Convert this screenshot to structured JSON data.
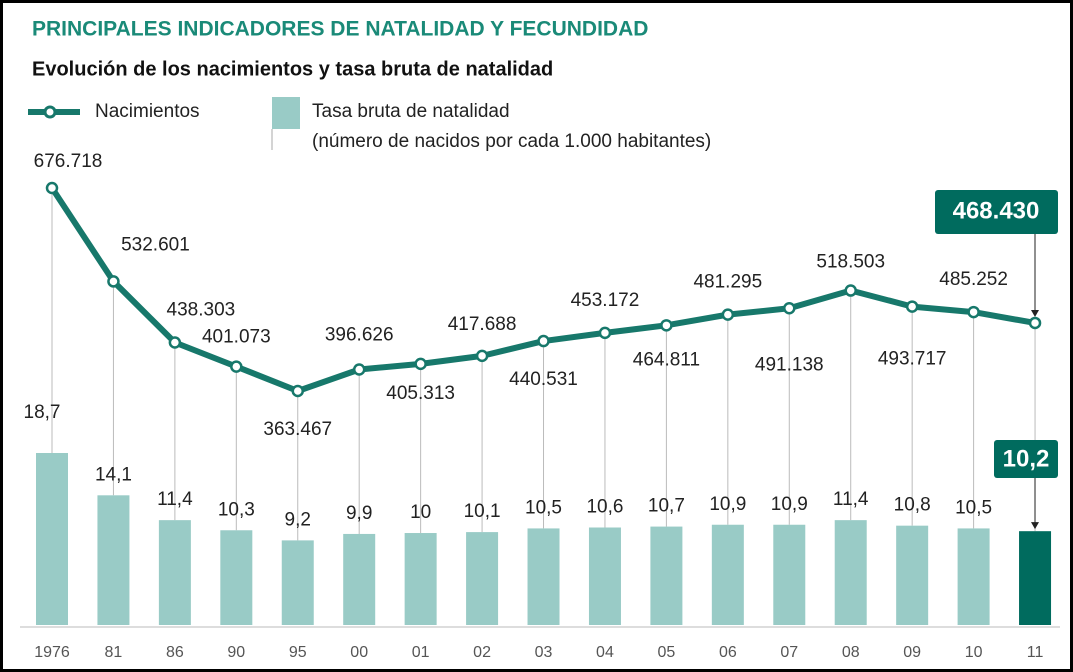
{
  "chart_data": {
    "type": "combo",
    "title": "PRINCIPALES INDICADORES DE NATALIDAD Y FECUNDIDAD",
    "subtitle": "Evolución de los nacimientos y tasa bruta de natalidad",
    "categories": [
      "1976",
      "81",
      "86",
      "90",
      "95",
      "00",
      "01",
      "02",
      "03",
      "04",
      "05",
      "06",
      "07",
      "08",
      "09",
      "10",
      "11"
    ],
    "highlight_color": "#006b5e",
    "series": [
      {
        "name": "Tasa bruta de natalidad",
        "description": "(número de nacidos por cada 1.000 habitantes)",
        "type": "bar",
        "color": "#99cbc6",
        "values": [
          18.7,
          14.1,
          11.4,
          10.3,
          9.2,
          9.9,
          10,
          10.1,
          10.5,
          10.6,
          10.7,
          10.9,
          10.9,
          11.4,
          10.8,
          10.5,
          10.2
        ],
        "value_labels": [
          "18,7",
          "14,1",
          "11,4",
          "10,3",
          "9,2",
          "9,9",
          "10",
          "10,1",
          "10,5",
          "10,6",
          "10,7",
          "10,9",
          "10,9",
          "11,4",
          "10,8",
          "10,5",
          "10,2"
        ]
      },
      {
        "name": "Nacimientos",
        "type": "line",
        "color": "#17786b",
        "values": [
          676718,
          532601,
          438303,
          401073,
          363467,
          396626,
          405313,
          417688,
          440531,
          453172,
          464811,
          481295,
          491138,
          518503,
          493717,
          485252,
          468430
        ],
        "value_labels": [
          "676.718",
          "532.601",
          "438.303",
          "401.073",
          "363.467",
          "396.626",
          "405.313",
          "417.688",
          "440.531",
          "453.172",
          "464.811",
          "481.295",
          "491.138",
          "518.503",
          "493.717",
          "485.252",
          "468.430"
        ]
      }
    ]
  }
}
